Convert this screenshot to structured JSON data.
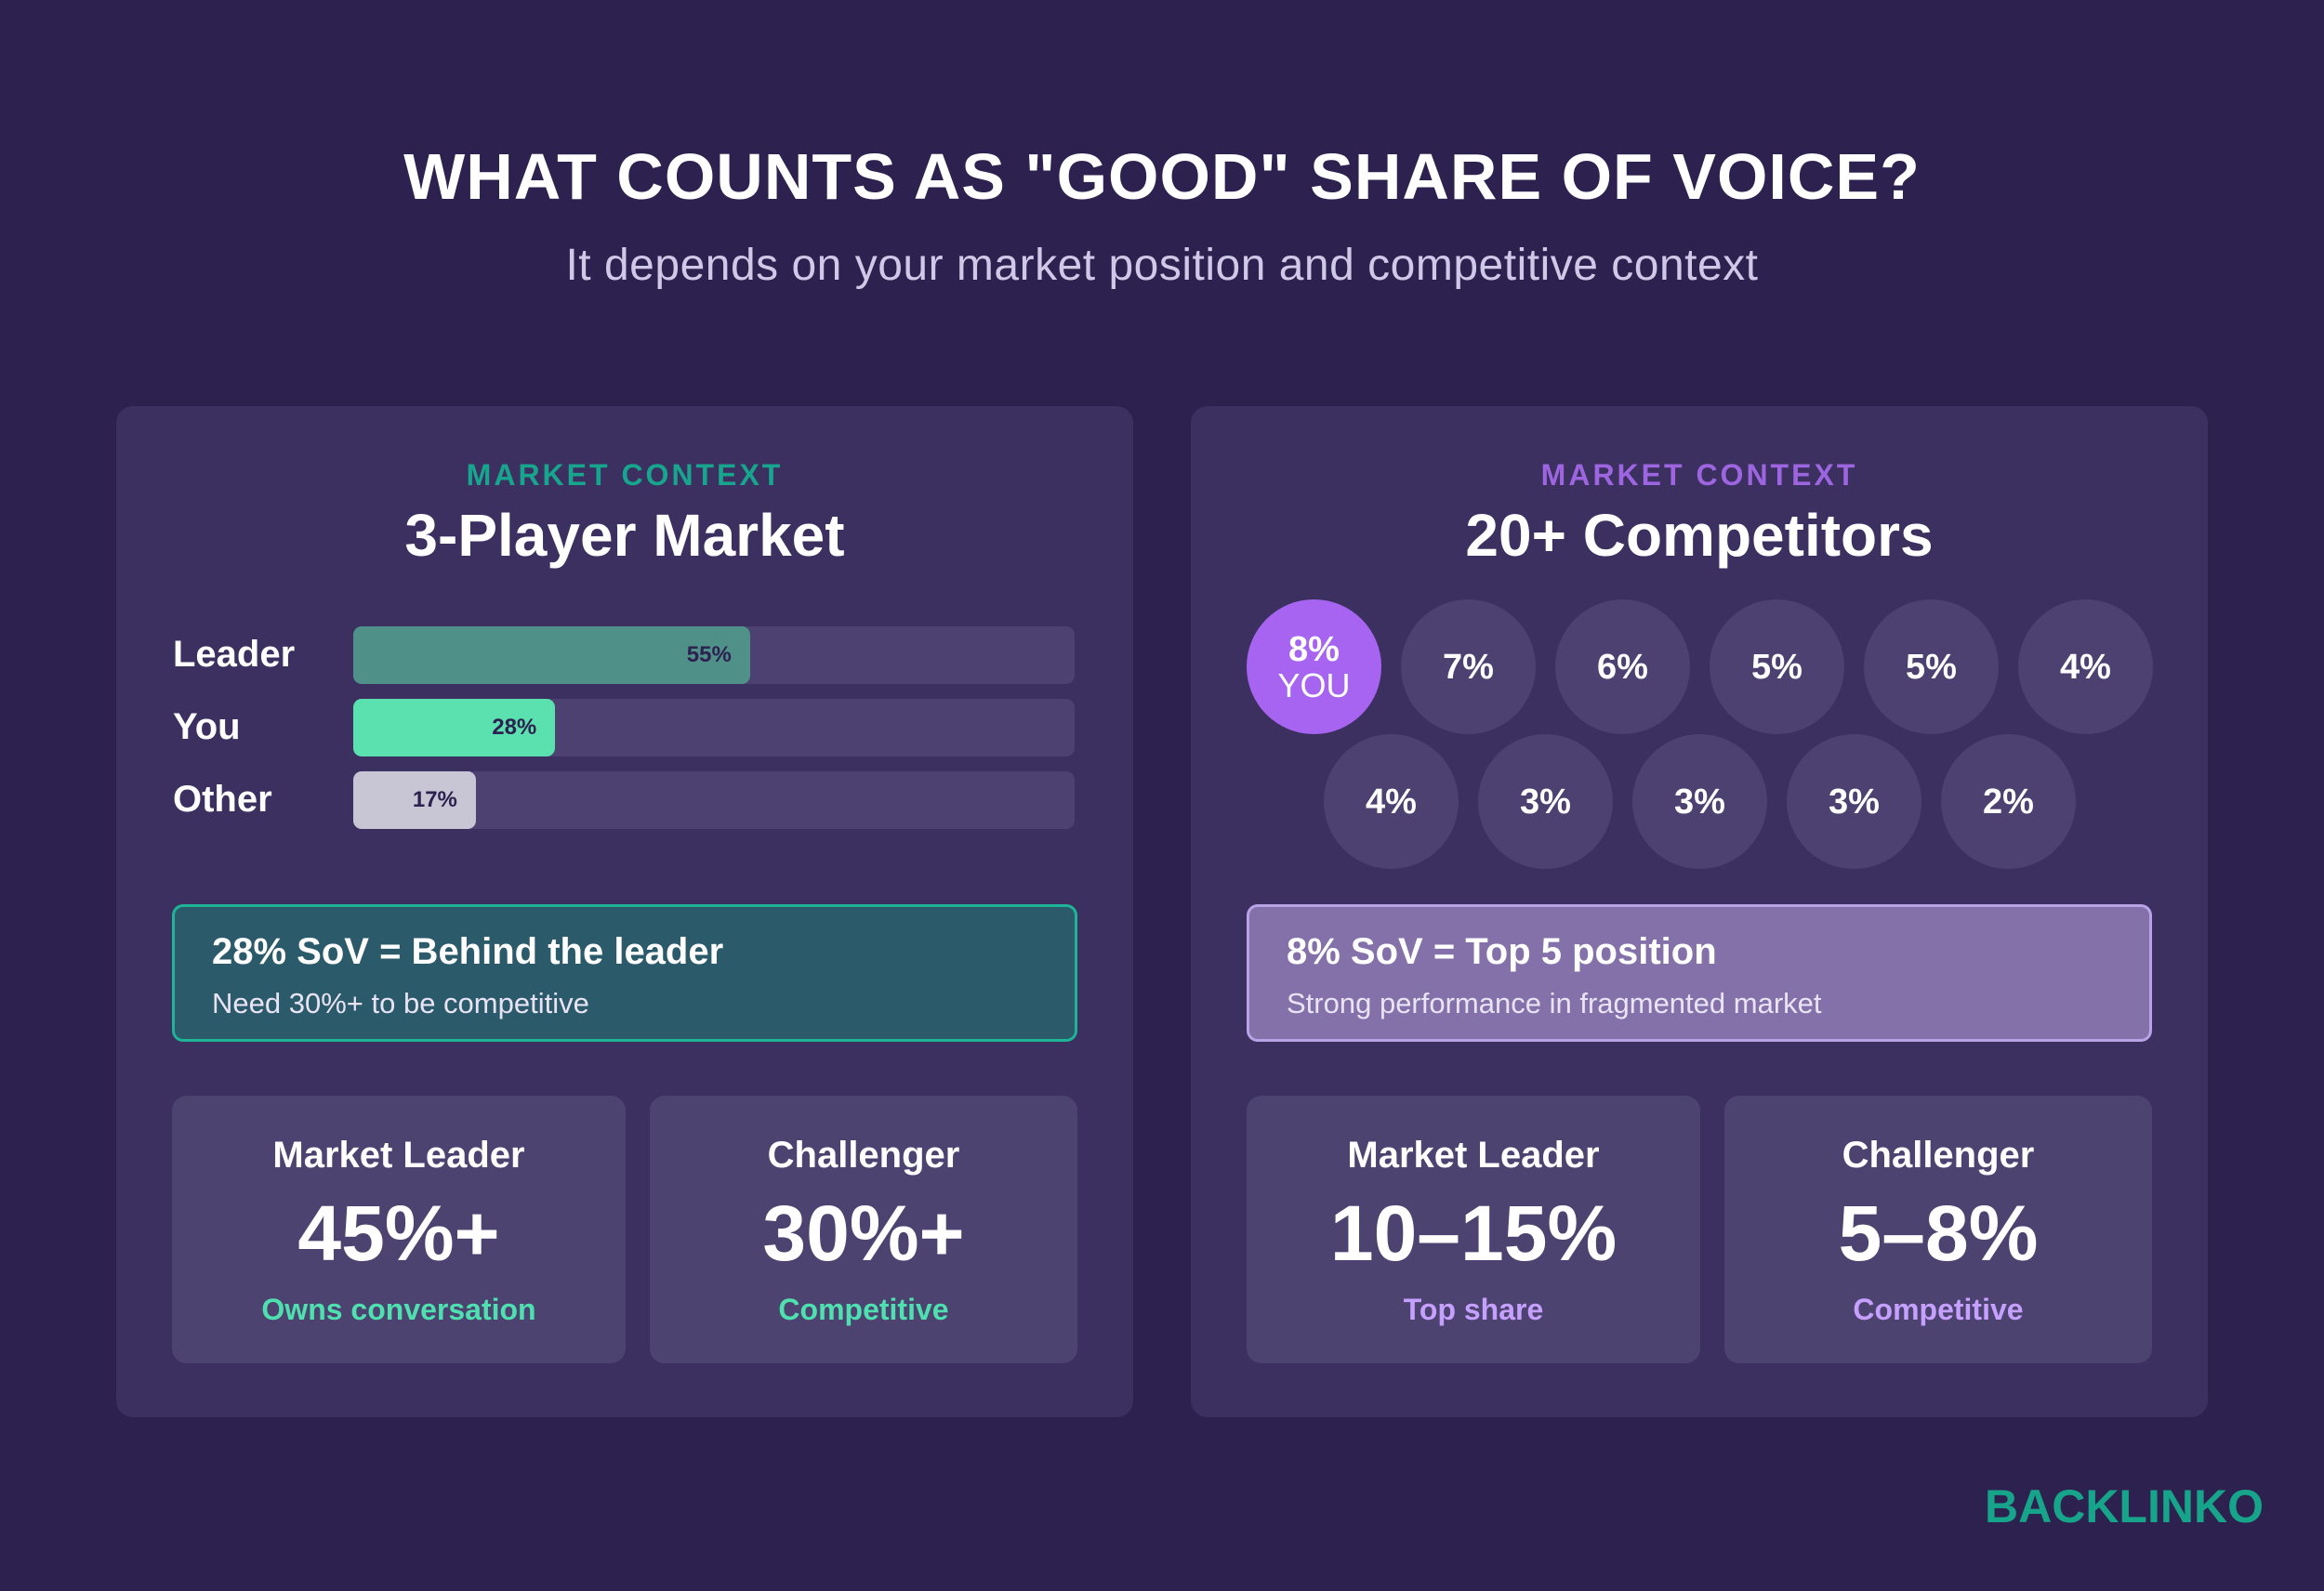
{
  "header": {
    "title": "WHAT COUNTS AS \"GOOD\" SHARE OF VOICE?",
    "subtitle": "It depends on your market position and competitive context"
  },
  "colors": {
    "background": "#2d2150",
    "panel": "#3b3060",
    "leader_bar": "#4f9089",
    "you_bar": "#5be0b0",
    "other_bar": "#c8c5d4",
    "you_bubble": "#a764f0",
    "left_accent": "#17a58e",
    "right_accent": "#9d66e0"
  },
  "left_panel": {
    "kicker": "MARKET CONTEXT",
    "title": "3-Player Market",
    "callout": {
      "head": "28% SoV = Behind the leader",
      "sub": "Need 30%+ to be competitive"
    },
    "stats": [
      {
        "label": "Market Leader",
        "value": "45%+",
        "desc": "Owns conversation"
      },
      {
        "label": "Challenger",
        "value": "30%+",
        "desc": "Competitive"
      }
    ]
  },
  "right_panel": {
    "kicker": "MARKET CONTEXT",
    "title": "20+ Competitors",
    "callout": {
      "head": "8% SoV = Top 5 position",
      "sub": "Strong performance in fragmented market"
    },
    "stats": [
      {
        "label": "Market Leader",
        "value": "10–15%",
        "desc": "Top share"
      },
      {
        "label": "Challenger",
        "value": "5–8%",
        "desc": "Competitive"
      }
    ]
  },
  "chart_data": [
    {
      "type": "bar",
      "orientation": "horizontal",
      "title": "3-Player Market",
      "categories": [
        "Leader",
        "You",
        "Other"
      ],
      "values": [
        55,
        28,
        17
      ],
      "value_labels": [
        "55%",
        "28%",
        "17%"
      ],
      "xlim": [
        0,
        100
      ]
    },
    {
      "type": "bubble-grid",
      "title": "20+ Competitors",
      "values": [
        8,
        7,
        6,
        5,
        5,
        4,
        4,
        3,
        3,
        3,
        2
      ],
      "value_labels": [
        "8%",
        "7%",
        "6%",
        "5%",
        "5%",
        "4%",
        "4%",
        "3%",
        "3%",
        "3%",
        "2%"
      ],
      "highlight_index": 0,
      "highlight_label": "YOU"
    }
  ],
  "logo": {
    "text": "BACKLINKO"
  }
}
